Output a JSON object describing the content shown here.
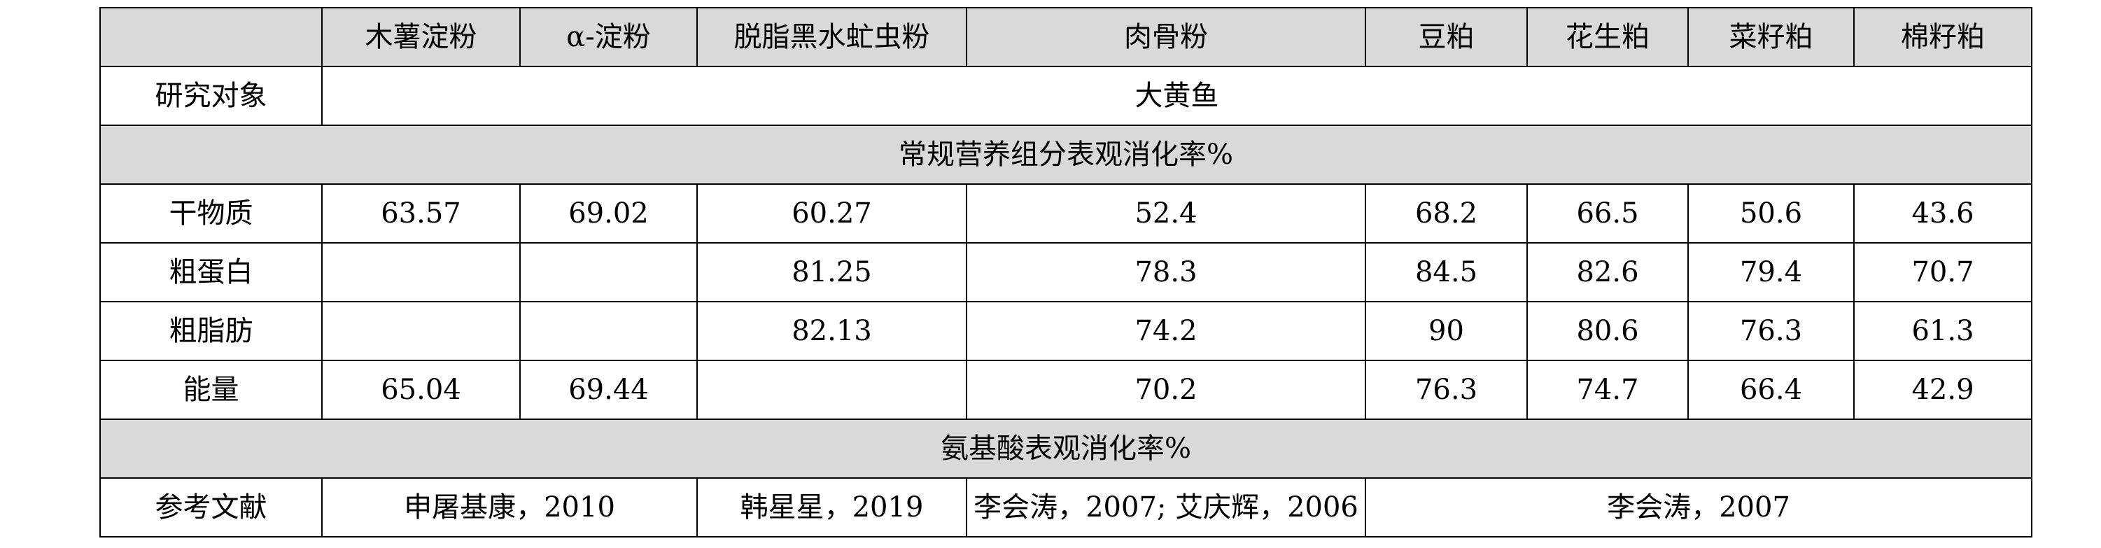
{
  "header": {
    "corner": "",
    "columns": [
      "木薯淀粉",
      "α-淀粉",
      "脱脂黑水虻虫粉",
      "肉骨粉",
      "豆粕",
      "花生粕",
      "菜籽粕",
      "棉籽粕"
    ]
  },
  "subject": {
    "label": "研究对象",
    "value": "大黄鱼"
  },
  "section_conventional": "常规营养组分表观消化率%",
  "rows": [
    {
      "label": "干物质",
      "values": [
        "63.57",
        "69.02",
        "60.27",
        "52.4",
        "68.2",
        "66.5",
        "50.6",
        "43.6"
      ]
    },
    {
      "label": "粗蛋白",
      "values": [
        "",
        "",
        "81.25",
        "78.3",
        "84.5",
        "82.6",
        "79.4",
        "70.7"
      ]
    },
    {
      "label": "粗脂肪",
      "values": [
        "",
        "",
        "82.13",
        "74.2",
        "90",
        "80.6",
        "76.3",
        "61.3"
      ]
    },
    {
      "label": "能量",
      "values": [
        "65.04",
        "69.44",
        "",
        "70.2",
        "76.3",
        "74.7",
        "66.4",
        "42.9"
      ]
    }
  ],
  "section_amino": "氨基酸表观消化率%",
  "references": {
    "label": "参考文献",
    "ref1": "申屠基康，2010",
    "ref2": "韩星星，2019",
    "ref3": "李会涛，2007; 艾庆辉，2006",
    "ref4": "李会涛，2007"
  }
}
